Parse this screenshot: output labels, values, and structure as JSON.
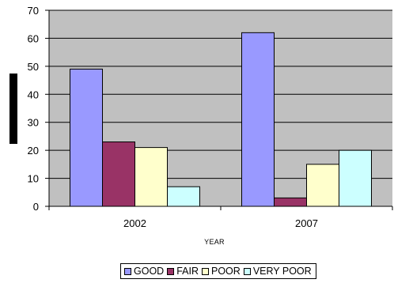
{
  "chart_data": {
    "type": "bar",
    "categories": [
      "2002",
      "2007"
    ],
    "series": [
      {
        "name": "GOOD",
        "values": [
          49,
          62
        ],
        "color": "#9999ff"
      },
      {
        "name": "FAIR",
        "values": [
          23,
          3
        ],
        "color": "#993366"
      },
      {
        "name": "POOR",
        "values": [
          21,
          15
        ],
        "color": "#ffffcc"
      },
      {
        "name": "VERY POOR",
        "values": [
          7,
          20
        ],
        "color": "#ccffff"
      }
    ],
    "xlabel": "YEAR",
    "ylabel": "",
    "ylim": [
      0,
      70
    ],
    "yticks": [
      0,
      10,
      20,
      30,
      40,
      50,
      60,
      70
    ],
    "grid": true,
    "plot_background": "#c0c0c0",
    "legend_position": "bottom"
  }
}
